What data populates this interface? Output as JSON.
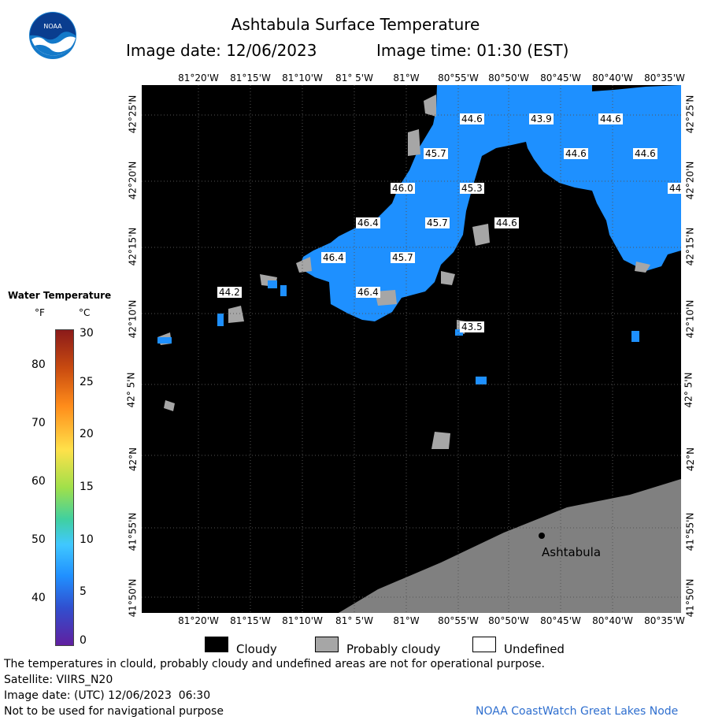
{
  "header": {
    "title": "Ashtabula Surface Temperature",
    "image_date": "Image date: 12/06/2023",
    "image_time": "Image time: 01:30 (EST)"
  },
  "logo_text": "NOAA",
  "map": {
    "lon_labels": [
      "81°20'W",
      "81°15'W",
      "81°10'W",
      "81° 5'W",
      "81°W",
      "80°55'W",
      "80°50'W",
      "80°45'W",
      "80°40'W",
      "80°35'W"
    ],
    "lat_labels": [
      "42°25'N",
      "42°20'N",
      "42°15'N",
      "42°10'N",
      "42° 5'N",
      "42°N",
      "41°55'N",
      "41°50'N"
    ],
    "temperature_labels": [
      "44.6",
      "43.9",
      "44.6",
      "45.7",
      "44.6",
      "44.6",
      "46.0",
      "45.3",
      "44",
      "46.4",
      "45.7",
      "44.6",
      "46.4",
      "45.7",
      "44.2",
      "46.4",
      "43.5"
    ],
    "city_label": "Ashtabula",
    "colors": {
      "cloud": "#000000",
      "prob_cloud": "#a6a6a6",
      "land": "#808080",
      "water": "#1e90ff",
      "label_bg": "#ffffff"
    }
  },
  "legend": {
    "title": "Water Temperature",
    "unit_f": "°F",
    "unit_c": "°C",
    "f_ticks": [
      "80",
      "70",
      "60",
      "50",
      "40"
    ],
    "c_ticks": [
      "30",
      "25",
      "20",
      "15",
      "10",
      "5",
      "0"
    ]
  },
  "key": {
    "cloudy": "Cloudy",
    "probably_cloudy": "Probably cloudy",
    "undefined": "Undefined"
  },
  "footer": {
    "disclaimer": "The temperatures in clould, probably cloudy and undefined areas are not for operational purpose.",
    "satellite": "Satellite: VIIRS_N20",
    "utc_date": "Image date: (UTC) 12/06/2023  06:30",
    "nav_warning": "Not to be used for navigational purpose",
    "credit": "NOAA CoastWatch Great Lakes Node"
  }
}
